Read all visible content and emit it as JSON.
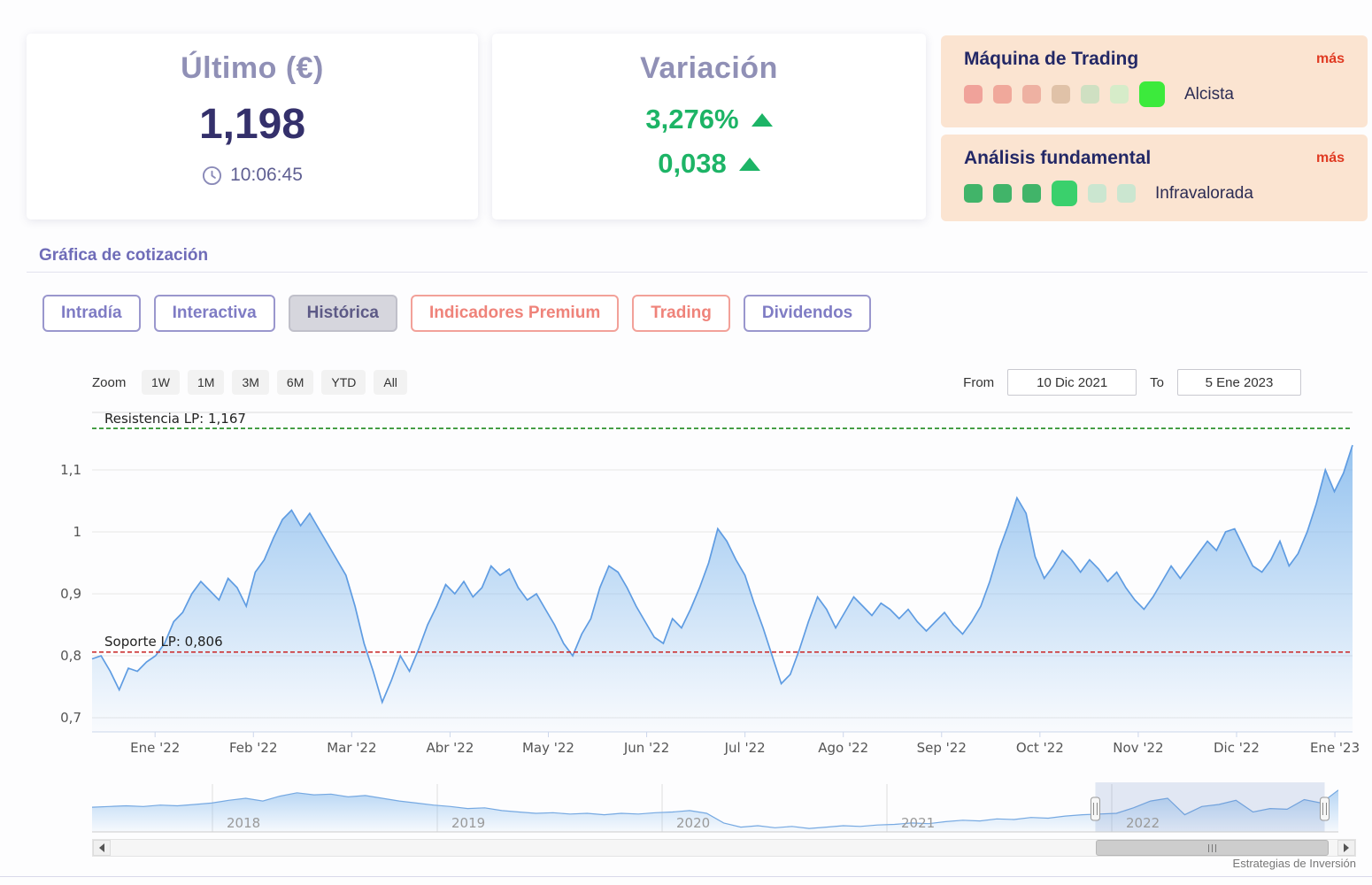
{
  "header": {
    "last_price": {
      "title": "Último (€)",
      "value": "1,198",
      "time": "10:06:45"
    },
    "variation": {
      "title": "Variación",
      "pct": "3,276%",
      "abs": "0,038",
      "up_color": "#1db466"
    },
    "trading_machine": {
      "title": "Máquina de Trading",
      "more": "más",
      "status": "Alcista",
      "colors": [
        "#f0a29a",
        "#f0a89b",
        "#eeb1a2",
        "#e0c2a8",
        "#cfe0c2",
        "#d6ecc9",
        "#3cea3c"
      ],
      "active_index": 6
    },
    "fundamental": {
      "title": "Análisis fundamental",
      "more": "más",
      "status": "Infravalorada",
      "colors": [
        "#41b469",
        "#41b469",
        "#41b469",
        "#3ad06c",
        "#cbe6d0",
        "#cbe6d0"
      ],
      "active_index": 3
    }
  },
  "section_title": "Gráfica de cotización",
  "tabs": [
    {
      "label": "Intradía",
      "style": "purple"
    },
    {
      "label": "Interactiva",
      "style": "purple"
    },
    {
      "label": "Histórica",
      "style": "active"
    },
    {
      "label": "Indicadores Premium",
      "style": "red"
    },
    {
      "label": "Trading",
      "style": "red"
    },
    {
      "label": "Dividendos",
      "style": "purple"
    }
  ],
  "chart": {
    "zoom_label": "Zoom",
    "zoom_buttons": [
      "1W",
      "1M",
      "3M",
      "6M",
      "YTD",
      "All"
    ],
    "from_label": "From",
    "from_value": "10 Dic 2021",
    "to_label": "To",
    "to_value": "5 Ene 2023"
  },
  "chart_data": {
    "type": "area",
    "title": "",
    "xlabel": "",
    "ylabel": "",
    "line_color": "#5f9ce2",
    "fill_color": "#7cb5ec",
    "ylim": [
      0.677,
      1.193
    ],
    "yticks": {
      "values": [
        0.7,
        0.8,
        0.9,
        1.0,
        1.1
      ],
      "labels": [
        "0,7",
        "0,8",
        "0,9",
        "1",
        "1,1"
      ]
    },
    "xticks": [
      "Ene '22",
      "Feb '22",
      "Mar '22",
      "Abr '22",
      "May '22",
      "Jun '22",
      "Jul '22",
      "Ago '22",
      "Sep '22",
      "Oct '22",
      "Nov '22",
      "Dic '22",
      "Ene '23"
    ],
    "resistance": {
      "value": 1.167,
      "label": "Resistencia LP: 1,167",
      "color": "#1e8a1e"
    },
    "support": {
      "value": 0.806,
      "label": "Soporte LP: 0,806",
      "color": "#cc3333"
    },
    "series": [
      {
        "name": "Cotización",
        "values": [
          0.795,
          0.8,
          0.775,
          0.745,
          0.78,
          0.775,
          0.79,
          0.8,
          0.82,
          0.855,
          0.87,
          0.9,
          0.92,
          0.905,
          0.89,
          0.925,
          0.91,
          0.88,
          0.935,
          0.955,
          0.99,
          1.02,
          1.035,
          1.01,
          1.03,
          1.005,
          0.98,
          0.955,
          0.93,
          0.88,
          0.82,
          0.775,
          0.725,
          0.76,
          0.8,
          0.775,
          0.81,
          0.85,
          0.88,
          0.915,
          0.9,
          0.92,
          0.895,
          0.91,
          0.945,
          0.93,
          0.94,
          0.91,
          0.89,
          0.9,
          0.875,
          0.85,
          0.82,
          0.8,
          0.835,
          0.86,
          0.91,
          0.945,
          0.935,
          0.91,
          0.88,
          0.855,
          0.83,
          0.82,
          0.86,
          0.845,
          0.875,
          0.91,
          0.95,
          1.005,
          0.985,
          0.955,
          0.93,
          0.885,
          0.845,
          0.8,
          0.755,
          0.77,
          0.81,
          0.855,
          0.895,
          0.875,
          0.845,
          0.87,
          0.895,
          0.88,
          0.865,
          0.885,
          0.875,
          0.86,
          0.875,
          0.855,
          0.84,
          0.855,
          0.87,
          0.85,
          0.835,
          0.855,
          0.88,
          0.92,
          0.97,
          1.01,
          1.055,
          1.03,
          0.96,
          0.925,
          0.945,
          0.97,
          0.955,
          0.935,
          0.955,
          0.94,
          0.92,
          0.935,
          0.91,
          0.89,
          0.875,
          0.895,
          0.92,
          0.945,
          0.925,
          0.945,
          0.965,
          0.985,
          0.97,
          1.0,
          1.005,
          0.975,
          0.945,
          0.935,
          0.955,
          0.985,
          0.945,
          0.965,
          1.0,
          1.045,
          1.1,
          1.065,
          1.095,
          1.14
        ]
      }
    ],
    "navigator": {
      "ylim": [
        0.53,
        1.2
      ],
      "years": [
        "2018",
        "2019",
        "2020",
        "2021",
        "2022"
      ],
      "selected_range": [
        0.805,
        0.989
      ],
      "values": [
        0.89,
        0.9,
        0.91,
        0.9,
        0.92,
        0.91,
        0.93,
        0.95,
        0.99,
        1.02,
        0.98,
        1.05,
        1.1,
        1.07,
        1.08,
        1.04,
        1.06,
        1.02,
        0.98,
        0.95,
        0.92,
        0.9,
        0.87,
        0.88,
        0.84,
        0.82,
        0.8,
        0.81,
        0.79,
        0.8,
        0.78,
        0.8,
        0.79,
        0.81,
        0.82,
        0.84,
        0.8,
        0.66,
        0.6,
        0.62,
        0.59,
        0.61,
        0.58,
        0.6,
        0.62,
        0.61,
        0.63,
        0.64,
        0.66,
        0.65,
        0.68,
        0.7,
        0.69,
        0.72,
        0.71,
        0.74,
        0.73,
        0.76,
        0.78,
        0.79,
        0.8,
        0.88,
        0.98,
        1.02,
        0.78,
        0.9,
        0.93,
        0.99,
        0.82,
        0.87,
        0.86,
        1.0,
        0.95,
        1.14
      ]
    }
  },
  "footer": {
    "credit": "Estrategias de Inversión"
  }
}
